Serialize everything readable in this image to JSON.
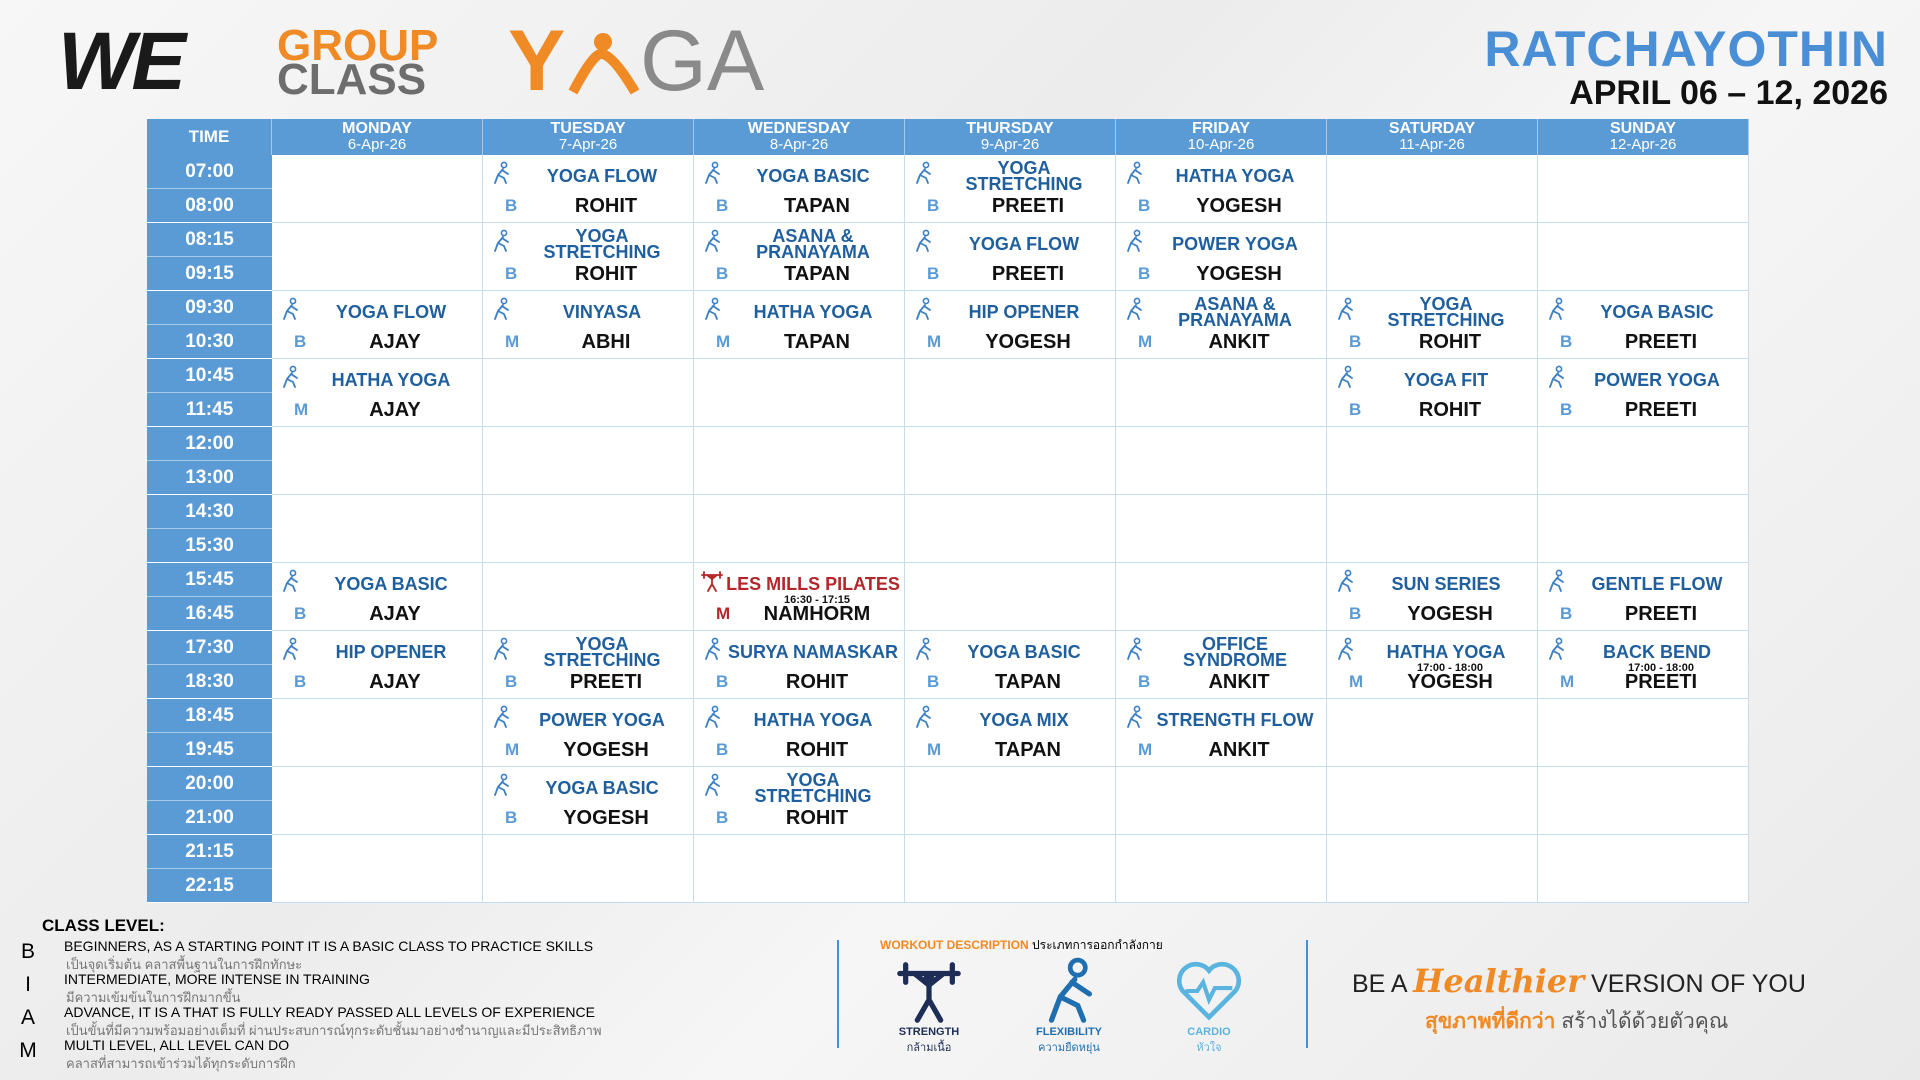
{
  "header": {
    "brand": "WE",
    "title_line1": "GROUP",
    "title_line2": "CLASS",
    "yoga_y": "Y",
    "yoga_rest": "GA",
    "location": "RATCHAYOTHIN",
    "date_range": "APRIL 06 – 12, 2026"
  },
  "table": {
    "time_header": "TIME",
    "days": [
      {
        "day": "MONDAY",
        "date": "6-Apr-26"
      },
      {
        "day": "TUESDAY",
        "date": "7-Apr-26"
      },
      {
        "day": "WEDNESDAY",
        "date": "8-Apr-26"
      },
      {
        "day": "THURSDAY",
        "date": "9-Apr-26"
      },
      {
        "day": "FRIDAY",
        "date": "10-Apr-26"
      },
      {
        "day": "SATURDAY",
        "date": "11-Apr-26"
      },
      {
        "day": "SUNDAY",
        "date": "12-Apr-26"
      }
    ],
    "rows": [
      {
        "start": "07:00",
        "end": "08:00",
        "cells": [
          null,
          {
            "name": "YOGA FLOW",
            "level": "B",
            "instructor": "ROHIT",
            "icon": "flexibility"
          },
          {
            "name": "YOGA BASIC",
            "level": "B",
            "instructor": "TAPAN",
            "icon": "flexibility"
          },
          {
            "name": "YOGA STRETCHING",
            "level": "B",
            "instructor": "PREETI",
            "icon": "flexibility"
          },
          {
            "name": "HATHA YOGA",
            "level": "B",
            "instructor": "YOGESH",
            "icon": "flexibility"
          },
          null,
          null
        ]
      },
      {
        "start": "08:15",
        "end": "09:15",
        "cells": [
          null,
          {
            "name": "YOGA STRETCHING",
            "level": "B",
            "instructor": "ROHIT",
            "icon": "flexibility"
          },
          {
            "name": "ASANA & PRANAYAMA",
            "level": "B",
            "instructor": "TAPAN",
            "icon": "flexibility"
          },
          {
            "name": "YOGA FLOW",
            "level": "B",
            "instructor": "PREETI",
            "icon": "flexibility"
          },
          {
            "name": "POWER YOGA",
            "level": "B",
            "instructor": "YOGESH",
            "icon": "flexibility"
          },
          null,
          null
        ]
      },
      {
        "start": "09:30",
        "end": "10:30",
        "cells": [
          {
            "name": "YOGA FLOW",
            "level": "B",
            "instructor": "AJAY",
            "icon": "flexibility"
          },
          {
            "name": "VINYASA",
            "level": "M",
            "instructor": "ABHI",
            "icon": "flexibility"
          },
          {
            "name": "HATHA YOGA",
            "level": "M",
            "instructor": "TAPAN",
            "icon": "flexibility"
          },
          {
            "name": "HIP OPENER",
            "level": "M",
            "instructor": "YOGESH",
            "icon": "flexibility"
          },
          {
            "name": "ASANA & PRANAYAMA",
            "level": "M",
            "instructor": "ANKIT",
            "icon": "flexibility"
          },
          {
            "name": "YOGA STRETCHING",
            "level": "B",
            "instructor": "ROHIT",
            "icon": "flexibility"
          },
          {
            "name": "YOGA BASIC",
            "level": "B",
            "instructor": "PREETI",
            "icon": "flexibility"
          }
        ]
      },
      {
        "start": "10:45",
        "end": "11:45",
        "cells": [
          {
            "name": "HATHA YOGA",
            "level": "M",
            "instructor": "AJAY",
            "icon": "flexibility"
          },
          null,
          null,
          null,
          null,
          {
            "name": "YOGA FIT",
            "level": "B",
            "instructor": "ROHIT",
            "icon": "flexibility"
          },
          {
            "name": "POWER YOGA",
            "level": "B",
            "instructor": "PREETI",
            "icon": "flexibility"
          }
        ]
      },
      {
        "start": "12:00",
        "end": "13:00",
        "cells": [
          null,
          null,
          null,
          null,
          null,
          null,
          null
        ]
      },
      {
        "start": "14:30",
        "end": "15:30",
        "cells": [
          null,
          null,
          null,
          null,
          null,
          null,
          null
        ]
      },
      {
        "start": "15:45",
        "end": "16:45",
        "cells": [
          {
            "name": "YOGA BASIC",
            "level": "B",
            "instructor": "AJAY",
            "icon": "flexibility"
          },
          null,
          {
            "name": "LES MILLS PILATES",
            "level": "M",
            "instructor": "NAMHORM",
            "icon": "strength",
            "note": "16:30 - 17:15",
            "color": "#b3262a"
          },
          null,
          null,
          {
            "name": "SUN SERIES",
            "level": "B",
            "instructor": "YOGESH",
            "icon": "flexibility"
          },
          {
            "name": "GENTLE FLOW",
            "level": "B",
            "instructor": "PREETI",
            "icon": "flexibility"
          }
        ]
      },
      {
        "start": "17:30",
        "end": "18:30",
        "cells": [
          {
            "name": "HIP OPENER",
            "level": "B",
            "instructor": "AJAY",
            "icon": "flexibility"
          },
          {
            "name": "YOGA STRETCHING",
            "level": "B",
            "instructor": "PREETI",
            "icon": "flexibility"
          },
          {
            "name": "SURYA NAMASKAR",
            "level": "B",
            "instructor": "ROHIT",
            "icon": "flexibility"
          },
          {
            "name": "YOGA BASIC",
            "level": "B",
            "instructor": "TAPAN",
            "icon": "flexibility"
          },
          {
            "name": "OFFICE SYNDROME",
            "level": "B",
            "instructor": "ANKIT",
            "icon": "flexibility"
          },
          {
            "name": "HATHA YOGA",
            "level": "M",
            "instructor": "YOGESH",
            "icon": "flexibility",
            "note": "17:00 - 18:00"
          },
          {
            "name": "BACK BEND",
            "level": "M",
            "instructor": "PREETI",
            "icon": "flexibility",
            "note": "17:00 - 18:00"
          }
        ]
      },
      {
        "start": "18:45",
        "end": "19:45",
        "cells": [
          null,
          {
            "name": "POWER YOGA",
            "level": "M",
            "instructor": "YOGESH",
            "icon": "flexibility"
          },
          {
            "name": "HATHA YOGA",
            "level": "B",
            "instructor": "ROHIT",
            "icon": "flexibility"
          },
          {
            "name": "YOGA MIX",
            "level": "M",
            "instructor": "TAPAN",
            "icon": "flexibility"
          },
          {
            "name": "STRENGTH FLOW",
            "level": "M",
            "instructor": "ANKIT",
            "icon": "flexibility"
          },
          null,
          null
        ]
      },
      {
        "start": "20:00",
        "end": "21:00",
        "cells": [
          null,
          {
            "name": "YOGA BASIC",
            "level": "B",
            "instructor": "YOGESH",
            "icon": "flexibility"
          },
          {
            "name": "YOGA STRETCHING",
            "level": "B",
            "instructor": "ROHIT",
            "icon": "flexibility"
          },
          null,
          null,
          null,
          null
        ]
      },
      {
        "start": "21:15",
        "end": "22:15",
        "cells": [
          null,
          null,
          null,
          null,
          null,
          null,
          null
        ]
      }
    ]
  },
  "legend": {
    "title": "CLASS LEVEL:",
    "levels": [
      {
        "letter": "B",
        "text": "BEGINNERS, AS A STARTING POINT IT IS A BASIC CLASS TO PRACTICE SKILLS",
        "thai": "เป็นจุดเริ่มต้น คลาสพื้นฐานในการฝึกทักษะ"
      },
      {
        "letter": "I",
        "text": "INTERMEDIATE, MORE INTENSE IN TRAINING",
        "thai": "มีความเข้มข้นในการฝึกมากขึ้น"
      },
      {
        "letter": "A",
        "text": "ADVANCE, IT IS A THAT IS FULLY READY PASSED ALL LEVELS OF EXPERIENCE",
        "thai": "เป็นขั้นที่มีความพร้อมอย่างเต็มที่ ผ่านประสบการณ์ทุกระดับชั้นมาอย่างชำนาญและมีประสิทธิภาพ"
      },
      {
        "letter": "M",
        "text": "MULTI LEVEL, ALL LEVEL CAN DO",
        "thai": "คลาสที่สามารถเข้าร่วมได้ทุกระดับการฝึก"
      }
    ]
  },
  "workout": {
    "title": "WORKOUT DESCRIPTION",
    "title_thai": "ประเภทการออกกำลังกาย",
    "items": [
      {
        "name": "STRENGTH",
        "thai": "กล้ามเนื้อ",
        "icon": "strength",
        "color": "#1d2d55"
      },
      {
        "name": "FLEXIBILITY",
        "thai": "ความยืดหยุ่น",
        "icon": "flexibility",
        "color": "#1f6fb0"
      },
      {
        "name": "CARDIO",
        "thai": "หัวใจ",
        "icon": "cardio",
        "color": "#5ab4e0"
      }
    ]
  },
  "slogan": {
    "prefix": "BE A",
    "highlight": "Healthier",
    "suffix": "VERSION OF YOU",
    "thai_highlight": "สุขภาพที่ดีกว่า",
    "thai_rest": "สร้างได้ด้วยตัวคุณ"
  }
}
